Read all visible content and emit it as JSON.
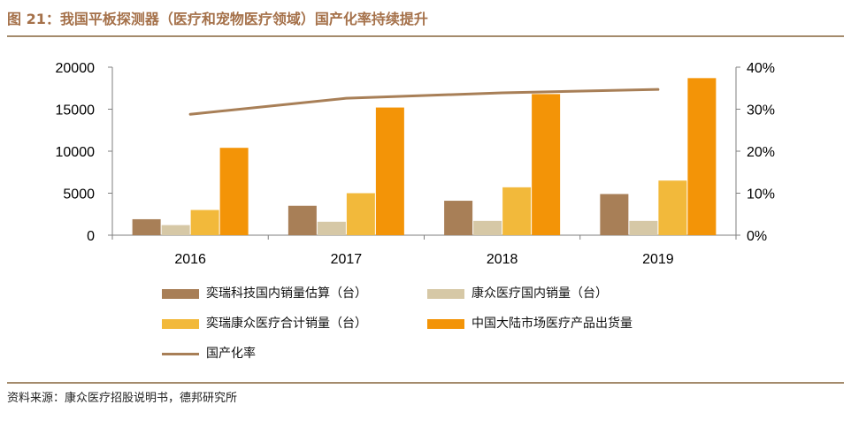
{
  "header": {
    "title": "图 21：我国平板探测器（医疗和宠物医疗领域）国产化率持续提升"
  },
  "footer": {
    "source": "资料来源：康众医疗招股说明书，德邦研究所"
  },
  "colors": {
    "title": "#a5714a",
    "rule": "#a48b6c",
    "series": [
      "#a87f57",
      "#d6c8a6",
      "#f2b93b",
      "#f39407"
    ],
    "line": "#a87f57"
  },
  "chart_data": {
    "type": "bar",
    "categories": [
      "2016",
      "2017",
      "2018",
      "2019"
    ],
    "series": [
      {
        "name": "奕瑞科技国内销量估算（台）",
        "values": [
          1900,
          3500,
          4100,
          4900
        ]
      },
      {
        "name": "康众医疗国内销量（台）",
        "values": [
          1200,
          1600,
          1700,
          1700
        ]
      },
      {
        "name": "奕瑞康众医疗合计销量（台）",
        "values": [
          3000,
          5000,
          5700,
          6500
        ]
      },
      {
        "name": "中国大陆市场医疗产品出货量",
        "values": [
          10400,
          15200,
          16800,
          18700
        ]
      }
    ],
    "line_series": {
      "name": "国产化率",
      "values": [
        28.8,
        32.6,
        33.9,
        34.7
      ],
      "axis": "right",
      "unit": "%"
    },
    "ylim": [
      0,
      20000
    ],
    "y_ticks": [
      "0",
      "5000",
      "10000",
      "15000",
      "20000"
    ],
    "y2lim": [
      0,
      40
    ],
    "y2_ticks": [
      "0%",
      "10%",
      "20%",
      "30%",
      "40%"
    ],
    "grid": false,
    "legend_position": "bottom"
  }
}
